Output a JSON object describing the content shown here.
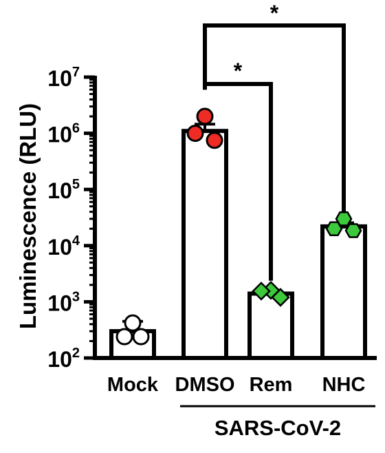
{
  "chart_data": {
    "type": "bar",
    "title": "",
    "ylabel": "Luminescence (RLU)",
    "y_scale": "log",
    "ylim": [
      100,
      10000000
    ],
    "y_ticks": [
      {
        "value": 100,
        "base": "10",
        "exp": "2"
      },
      {
        "value": 1000,
        "base": "10",
        "exp": "3"
      },
      {
        "value": 10000,
        "base": "10",
        "exp": "4"
      },
      {
        "value": 100000,
        "base": "10",
        "exp": "5"
      },
      {
        "value": 1000000,
        "base": "10",
        "exp": "6"
      },
      {
        "value": 10000000,
        "base": "10",
        "exp": "7"
      }
    ],
    "categories": [
      "Mock",
      "DMSO",
      "Rem",
      "NHC"
    ],
    "values": [
      300,
      1100000,
      1400,
      22000
    ],
    "error_upper": [
      450,
      1450000,
      1600,
      25500
    ],
    "points": [
      [
        420,
        240,
        240
      ],
      [
        2000000,
        1000000,
        750000
      ],
      [
        1600,
        1550,
        1200
      ],
      [
        30000,
        20000,
        18500
      ]
    ],
    "marker_shapes": [
      "circle",
      "circle",
      "diamond",
      "hexagon"
    ],
    "marker_colors": [
      "#ffffff",
      "#ee2b24",
      "#3cc93c",
      "#3cc93c"
    ],
    "group_label": "SARS-CoV-2",
    "significance": [
      {
        "from": "DMSO",
        "to": "Rem",
        "label": "*"
      },
      {
        "from": "DMSO",
        "to": "NHC",
        "label": "*"
      }
    ]
  }
}
